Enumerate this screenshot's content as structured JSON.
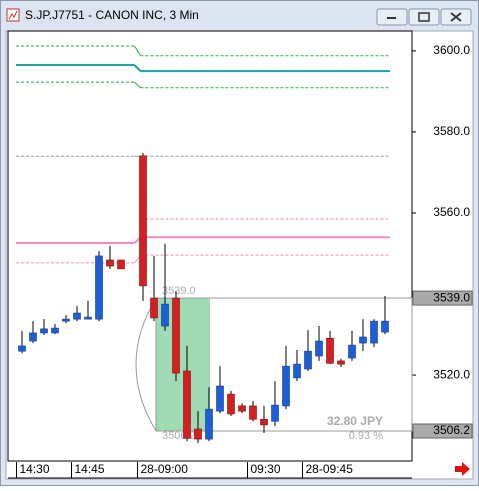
{
  "window": {
    "title": "S.JP.J7751 - CANON INC, 3 Min"
  },
  "chart_data": {
    "type": "candlestick",
    "categories": [
      "14:30",
      null,
      null,
      null,
      null,
      "14:45",
      null,
      null,
      null,
      null,
      null,
      "28-09:00",
      null,
      null,
      null,
      null,
      null,
      null,
      null,
      null,
      null,
      "09:30",
      null,
      null,
      null,
      null,
      "28-09:45",
      null,
      null,
      null,
      null,
      null,
      null,
      null
    ],
    "open": [
      3525.9,
      3528.4,
      3530.4,
      3530.4,
      3533.3,
      3533.8,
      3533.8,
      3533.8,
      3548.4,
      3548.4,
      null,
      3574.1,
      3539.0,
      3532.1,
      3539.0,
      3521.0,
      3506.7,
      3504.2,
      3511.1,
      3515.3,
      3512.4,
      3512.4,
      3509.1,
      3508.6,
      3512.4,
      3519.3,
      3521.5,
      3524.7,
      3529.1,
      3523.5,
      3524.2,
      3527.9,
      3527.9,
      3530.6
    ],
    "high": [
      3530.9,
      3533.3,
      3533.8,
      3532.6,
      3534.8,
      3537.0,
      3538.3,
      3550.6,
      3551.9,
      3548.4,
      null,
      3574.8,
      3549.4,
      3552.4,
      3540.7,
      3527.2,
      3511.1,
      3517.0,
      3522.2,
      3516.1,
      3513.0,
      3513.6,
      3512.4,
      3518.5,
      3527.2,
      3526.2,
      3531.1,
      3532.1,
      3530.9,
      3524.0,
      3530.9,
      3533.8,
      3533.8,
      3539.5
    ],
    "low": [
      3525.4,
      3527.9,
      3529.9,
      3530.1,
      3532.8,
      3533.3,
      3533.8,
      3533.3,
      3546.2,
      3546.2,
      null,
      3538.3,
      3533.3,
      3530.9,
      3518.5,
      3503.7,
      3503.2,
      3503.7,
      3510.6,
      3509.9,
      3510.6,
      3508.6,
      3505.7,
      3507.4,
      3511.6,
      3518.5,
      3521.0,
      3523.5,
      3522.7,
      3522.0,
      3523.5,
      3525.9,
      3526.9,
      3530.1
    ],
    "close": [
      3527.2,
      3530.4,
      3531.4,
      3531.6,
      3533.8,
      3535.3,
      3534.3,
      3549.4,
      3546.9,
      3546.2,
      null,
      3542.0,
      3534.1,
      3537.5,
      3520.5,
      3504.4,
      3504.2,
      3511.6,
      3517.3,
      3510.4,
      3511.1,
      3509.1,
      3507.7,
      3512.6,
      3522.2,
      3522.7,
      3525.9,
      3528.4,
      3522.9,
      3522.7,
      3527.4,
      3529.4,
      3533.3,
      3533.3
    ],
    "up_color": "#1f5fd6",
    "down_color": "#d42020",
    "levels": [
      {
        "color": "#22aa44",
        "dash": true,
        "values": [
          3601.2,
          3598.8
        ]
      },
      {
        "color": "#1aa3a3",
        "dash": false,
        "values": [
          3596.5,
          3595.0
        ]
      },
      {
        "color": "#22aa44",
        "dash": true,
        "values": [
          3592.3,
          3590.9
        ]
      },
      {
        "color": "#999999",
        "dash": true,
        "values": [
          3574.0,
          3574.0
        ]
      },
      {
        "color": "#f08cc0",
        "dash": true,
        "values": [
          null,
          3558.5
        ]
      },
      {
        "color": "#f08cc0",
        "dash": false,
        "values": [
          3552.6,
          3554.0
        ]
      },
      {
        "color": "#f08cc0",
        "dash": true,
        "values": [
          3547.7,
          3549.6
        ]
      }
    ],
    "measure": {
      "top": {
        "value": 3539.0,
        "label": "3539.0"
      },
      "bottom": {
        "value": 3506.2,
        "label": "3506.2"
      },
      "change": "32.80 JPY",
      "percent": "0.93 %"
    },
    "ylim": [
      3498.8,
      3604.9
    ],
    "yticks": [
      {
        "value": 3600,
        "label": "3600.0"
      },
      {
        "value": 3580,
        "label": "3580.0"
      },
      {
        "value": 3560,
        "label": "3560.0"
      },
      {
        "value": 3520,
        "label": "3520.0"
      }
    ]
  }
}
